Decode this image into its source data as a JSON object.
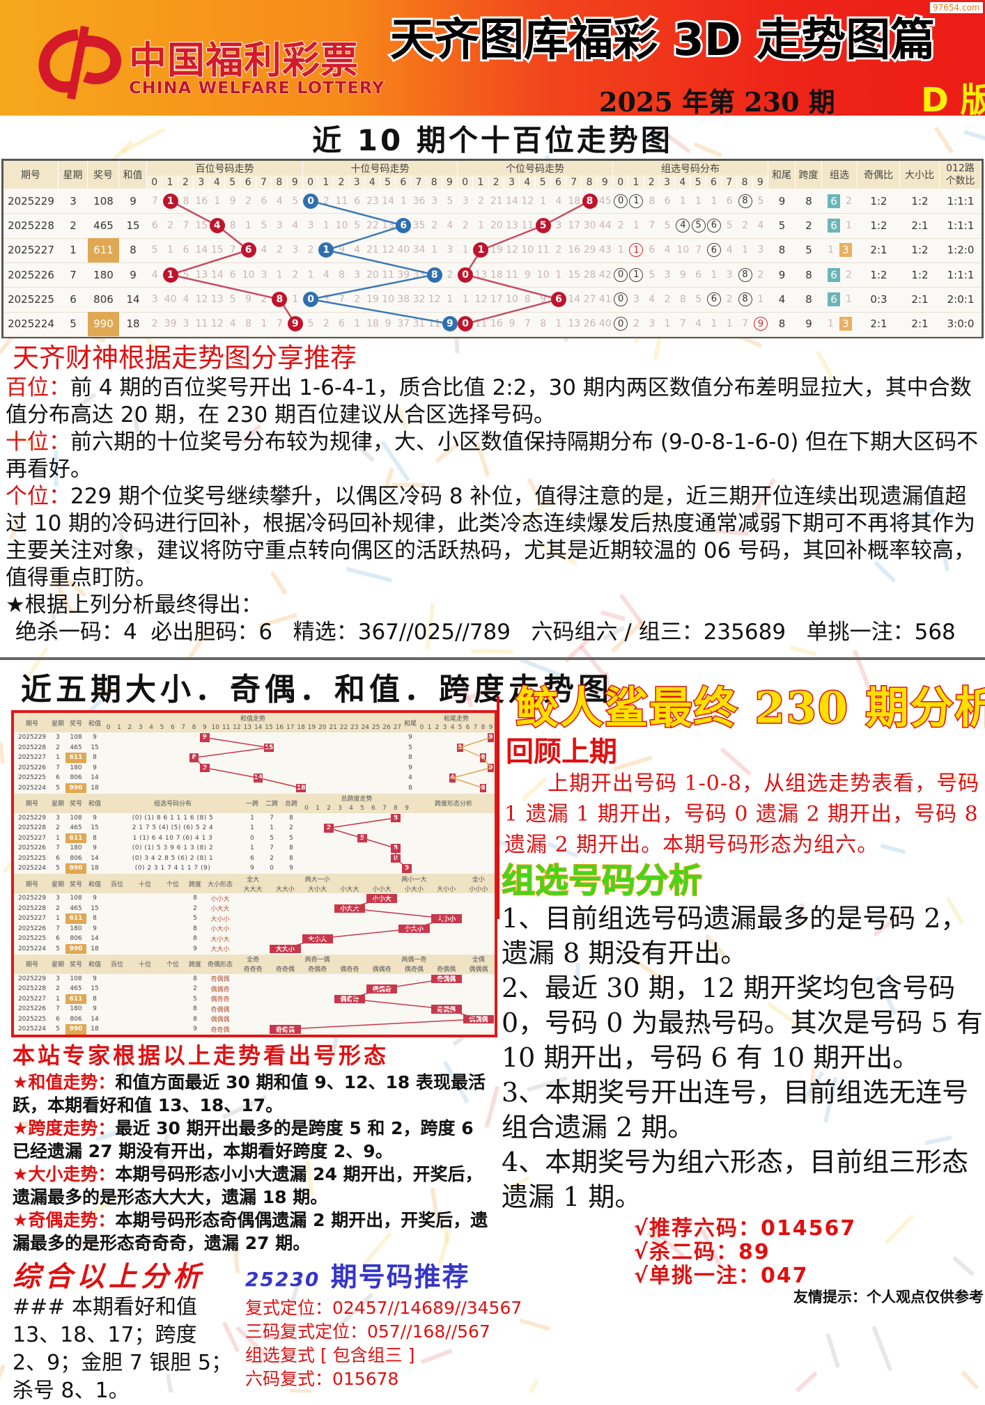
{
  "banner": {
    "logo_cn": "中国福利彩票",
    "logo_en": "CHINA WELFARE LOTTERY",
    "title": "天齐图库福彩 3D 走势图篇",
    "issue": "2025 年第 230 期",
    "edition": "D 版",
    "watermark": "97654.com",
    "colors": {
      "left": "#f6a81c",
      "right": "#ec1c16"
    }
  },
  "trend_title": "近 10 期个十百位走势图",
  "trend_table": {
    "headers": {
      "issue": "期号",
      "weekday": "星期",
      "number": "奖号",
      "sum": "和值",
      "hundreds": "百位号码走势",
      "tens": "十位号码走势",
      "units": "个位号码走势",
      "group_dist": "组选号码分布",
      "tail": "和尾",
      "span": "跨度",
      "group": "组选",
      "odd_even": "奇偶比",
      "big_small": "大小比",
      "road012_line1": "012路",
      "road012_line2": "个数比",
      "digits": [
        "0",
        "1",
        "2",
        "3",
        "4",
        "5",
        "6",
        "7",
        "8",
        "9"
      ]
    },
    "rows": [
      {
        "issue": "2025229",
        "weekday": "3",
        "number": "108",
        "highlight": false,
        "sum": "9",
        "hundreds": [
          "7",
          "1",
          "8",
          "16",
          "1",
          "9",
          "2",
          "6",
          "4",
          "5"
        ],
        "h_hit": 1,
        "tens": [
          "0",
          "2",
          "11",
          "6",
          "23",
          "14",
          "1",
          "36",
          "3",
          "5"
        ],
        "t_hit": 0,
        "units": [
          "3",
          "2",
          "21",
          "14",
          "12",
          "1",
          "4",
          "18",
          "8",
          "45"
        ],
        "u_hit": 8,
        "group_dist": [
          "0",
          "1",
          "8",
          "6",
          "1",
          "1",
          "1",
          "6",
          "8",
          "5"
        ],
        "circled": [
          0,
          1,
          8
        ],
        "red": [],
        "tail": "9",
        "span": "8",
        "group_type": "6",
        "group_miss": "2",
        "odd_even": "1:2",
        "big_small": "1:2",
        "road012": "1:1:1"
      },
      {
        "issue": "2025228",
        "weekday": "2",
        "number": "465",
        "highlight": false,
        "sum": "15",
        "hundreds": [
          "6",
          "2",
          "7",
          "15",
          "4",
          "8",
          "1",
          "5",
          "3",
          "4"
        ],
        "h_hit": 4,
        "tens": [
          "3",
          "1",
          "10",
          "5",
          "22",
          "13",
          "6",
          "35",
          "2",
          "4"
        ],
        "t_hit": 6,
        "units": [
          "2",
          "1",
          "20",
          "13",
          "11",
          "5",
          "3",
          "17",
          "30",
          "44"
        ],
        "u_hit": 5,
        "group_dist": [
          "2",
          "1",
          "7",
          "5",
          "4",
          "5",
          "6",
          "5",
          "2",
          "4"
        ],
        "circled": [
          4,
          5,
          6
        ],
        "red": [],
        "tail": "5",
        "span": "2",
        "group_type": "6",
        "group_miss": "1",
        "odd_even": "1:2",
        "big_small": "2:1",
        "road012": "1:1:1"
      },
      {
        "issue": "2025227",
        "weekday": "1",
        "number": "611",
        "highlight": true,
        "sum": "8",
        "hundreds": [
          "5",
          "1",
          "6",
          "14",
          "15",
          "7",
          "6",
          "4",
          "2",
          "3"
        ],
        "h_hit": 6,
        "tens": [
          "2",
          "1",
          "9",
          "4",
          "21",
          "12",
          "40",
          "34",
          "1",
          "3"
        ],
        "t_hit": 1,
        "units": [
          "1",
          "1",
          "19",
          "12",
          "10",
          "11",
          "2",
          "16",
          "29",
          "43"
        ],
        "u_hit": 1,
        "group_dist": [
          "1",
          "1",
          "6",
          "4",
          "10",
          "7",
          "6",
          "4",
          "1",
          "3"
        ],
        "circled": [
          6
        ],
        "red": [
          1
        ],
        "tail": "8",
        "span": "5",
        "group_type": "3",
        "group_miss": "1",
        "odd_even": "2:1",
        "big_small": "1:2",
        "road012": "1:2:0"
      },
      {
        "issue": "2025226",
        "weekday": "7",
        "number": "180",
        "highlight": false,
        "sum": "9",
        "hundreds": [
          "4",
          "1",
          "5",
          "13",
          "14",
          "6",
          "10",
          "3",
          "1",
          "2"
        ],
        "h_hit": 1,
        "tens": [
          "1",
          "4",
          "8",
          "3",
          "20",
          "11",
          "39",
          "33",
          "8",
          "2"
        ],
        "t_hit": 8,
        "units": [
          "0",
          "13",
          "18",
          "11",
          "9",
          "10",
          "1",
          "15",
          "28",
          "42"
        ],
        "u_hit": 0,
        "group_dist": [
          "0",
          "1",
          "5",
          "3",
          "9",
          "6",
          "1",
          "3",
          "8",
          "2"
        ],
        "circled": [
          0,
          1,
          8
        ],
        "red": [],
        "tail": "9",
        "span": "8",
        "group_type": "6",
        "group_miss": "2",
        "odd_even": "1:2",
        "big_small": "1:2",
        "road012": "1:1:1"
      },
      {
        "issue": "2025225",
        "weekday": "6",
        "number": "806",
        "highlight": false,
        "sum": "14",
        "hundreds": [
          "3",
          "40",
          "4",
          "12",
          "13",
          "5",
          "9",
          "2",
          "8",
          "1"
        ],
        "h_hit": 8,
        "tens": [
          "0",
          "3",
          "7",
          "2",
          "19",
          "10",
          "38",
          "32",
          "12",
          "1"
        ],
        "t_hit": 0,
        "units": [
          "1",
          "12",
          "17",
          "10",
          "8",
          "9",
          "6",
          "14",
          "27",
          "41"
        ],
        "u_hit": 6,
        "group_dist": [
          "0",
          "3",
          "4",
          "2",
          "8",
          "5",
          "6",
          "2",
          "8",
          "1"
        ],
        "circled": [
          0,
          6,
          8
        ],
        "red": [],
        "tail": "4",
        "span": "8",
        "group_type": "6",
        "group_miss": "1",
        "odd_even": "0:3",
        "big_small": "2:1",
        "road012": "2:0:1"
      },
      {
        "issue": "2025224",
        "weekday": "5",
        "number": "990",
        "highlight": true,
        "sum": "18",
        "hundreds": [
          "2",
          "39",
          "3",
          "11",
          "12",
          "4",
          "8",
          "1",
          "7",
          "9"
        ],
        "h_hit": 9,
        "tens": [
          "5",
          "2",
          "6",
          "1",
          "18",
          "9",
          "37",
          "31",
          "11",
          "9"
        ],
        "t_hit": 9,
        "units": [
          "0",
          "11",
          "16",
          "9",
          "7",
          "8",
          "1",
          "13",
          "26",
          "40"
        ],
        "u_hit": 0,
        "group_dist": [
          "0",
          "2",
          "3",
          "1",
          "7",
          "4",
          "1",
          "1",
          "7",
          "9"
        ],
        "circled": [
          0
        ],
        "red": [
          9
        ],
        "tail": "8",
        "span": "9",
        "group_type": "3",
        "group_miss": "1",
        "odd_even": "2:1",
        "big_small": "2:1",
        "road012": "3:0:0"
      }
    ]
  },
  "analysis": {
    "heading": "天齐财神根据走势图分享推荐",
    "hundreds_label": "百位：",
    "hundreds_text": "前 4 期的百位奖号开出 1-6-4-1，质合比值 2:2，30 期内两区数值分布差明显拉大，其中合数值分布高达 20 期，在 230 期百位建议从合区选择号码。",
    "tens_label": "十位：",
    "tens_text": "前六期的十位奖号分布较为规律，大、小区数值保持隔期分布 (9-0-8-1-6-0) 但在下期大区码不再看好。",
    "units_label": "个位：",
    "units_text": "229 期个位奖号继续攀升，以偶区冷码 8 补位，值得注意的是，近三期开位连续出现遗漏值超过 10 期的冷码进行回补，根据冷码回补规律，此类冷态连续爆发后热度通常减弱下期可不再将其作为主要关注对象，建议将防守重点转向偶区的活跃热码，尤其是近期较温的 06 号码，其回补概率较高，值得重点盯防。",
    "conclusion": "★根据上列分析最终得出：",
    "final": "绝杀一码：4  必出胆码：6   精选：367//025//789   六码组六 / 组三：235689   单挑一注：568"
  },
  "mini_chart": {
    "title": "近五期大小．奇偶．和值．跨度走势图",
    "h_issue": "期号",
    "h_weekday": "星期",
    "h_number": "奖号",
    "h_sum": "和值",
    "block1": {
      "sum_trend": "和值走势",
      "tail_label": "和尾",
      "tail_trend": "和尾走势",
      "rows": [
        {
          "sum": "9",
          "tail": "9"
        },
        {
          "sum": "15",
          "tail": "5"
        },
        {
          "sum": "8",
          "tail": "8"
        },
        {
          "sum": "9",
          "tail": "9"
        },
        {
          "sum": "14",
          "tail": "4"
        },
        {
          "sum": "18",
          "tail": "8"
        }
      ]
    },
    "block2": {
      "dist": "组选号码分布",
      "span1": "一跨",
      "span2": "二跨",
      "total": "总跨",
      "total_trend": "总跨度走势",
      "span_form": "跨度形态分析",
      "rows": [
        [
          "1",
          "7",
          "8"
        ],
        [
          "1",
          "1",
          "2"
        ],
        [
          "0",
          "5",
          "5"
        ],
        [
          "1",
          "7",
          "8"
        ],
        [
          "6",
          "2",
          "8"
        ],
        [
          "9",
          "0",
          "9"
        ]
      ]
    },
    "block3": {
      "pos": [
        "百位",
        "十位",
        "个位"
      ],
      "span": "跨度",
      "form": "大小形态",
      "groups": [
        "全大",
        "两大一小",
        "两小一大",
        "全小"
      ],
      "patterns": [
        "大大大",
        "大大小",
        "大小大",
        "小大大",
        "小小大",
        "小大小",
        "大小小",
        "小小小"
      ],
      "rows": [
        "小小大",
        "小大大",
        "大小小",
        "小大小",
        "大小大",
        "大大小"
      ]
    },
    "block4": {
      "pos": [
        "百位",
        "十位",
        "个位"
      ],
      "span": "跨度",
      "form": "奇偶形态",
      "groups": [
        "全奇",
        "两奇一偶",
        "两偶一奇",
        "全偶"
      ],
      "patterns": [
        "奇奇奇",
        "奇奇偶",
        "奇偶奇",
        "偶奇奇",
        "偶偶奇",
        "偶奇偶",
        "奇偶偶",
        "偶偶偶"
      ],
      "rows": [
        "奇偶偶",
        "偶偶奇",
        "偶奇奇",
        "奇偶偶",
        "偶偶偶",
        "奇奇偶"
      ]
    },
    "spans": [
      "8",
      "2",
      "5",
      "8",
      "8",
      "9"
    ]
  },
  "expert": {
    "heading": "本站专家根据以上走势看出号形态",
    "items": [
      {
        "label": "★和值走势：",
        "text": "和值方面最近 30 期和值 9、12、18 表现最活跃，本期看好和值 13、18、17。"
      },
      {
        "label": "★跨度走势：",
        "text": "最近 30 期开出最多的是跨度 5 和 2，跨度 6 已经遗漏 27 期没有开出，本期看好跨度 2、9。"
      },
      {
        "label": "★大小走势：",
        "text": "本期号码形态小小大遗漏 24 期开出，开奖后，遗漏最多的是形态大大大，遗漏 18 期。"
      },
      {
        "label": "★奇偶走势：",
        "text": "本期号码形态奇偶偶遗漏 2 期开出，开奖后，遗漏最多的是形态奇奇奇，遗漏 27 期。"
      }
    ]
  },
  "summary": {
    "heading": "综合以上分析",
    "text": "### 本期看好和值 13、18、17；跨度 2、9；金胆 7 银胆 5；杀号 8、1。"
  },
  "recommend": {
    "issue": "25230",
    "heading": "期号码推荐",
    "items": [
      "复式定位：02457//14689//34567",
      "三码复式定位：057//168//567",
      "组选复式 [ 包含组三 ]",
      "六码复式：015678"
    ]
  },
  "right": {
    "title": "鲛人鲨最终 230 期分析",
    "review_heading": "回顾上期",
    "review_text": "上期开出号码 1-0-8，从组选走势表看，号码 1 遗漏 1 期开出，号码 0 遗漏 2 期开出，号码 8 遗漏 2 期开出。本期号码形态为组六。",
    "group_heading": "组选号码分析",
    "group_items": [
      "1、目前组选号码遗漏最多的是号码 2，遗漏 8 期没有开出。",
      "2、最近 30 期，12 期开奖均包含号码 0，号码 0 为最热号码。其次是号码 5 有 10 期开出，号码 6 有 10 期开出。",
      "3、本期奖号开出连号，目前组选无连号组合遗漏 2 期。",
      "4、本期奖号为组六形态，目前组三形态遗漏 1 期。"
    ],
    "picks": [
      "√推荐六码：014567",
      "√杀二码：89",
      "√单挑一注：047"
    ],
    "tip": "友情提示：个人观点仅供参考"
  }
}
